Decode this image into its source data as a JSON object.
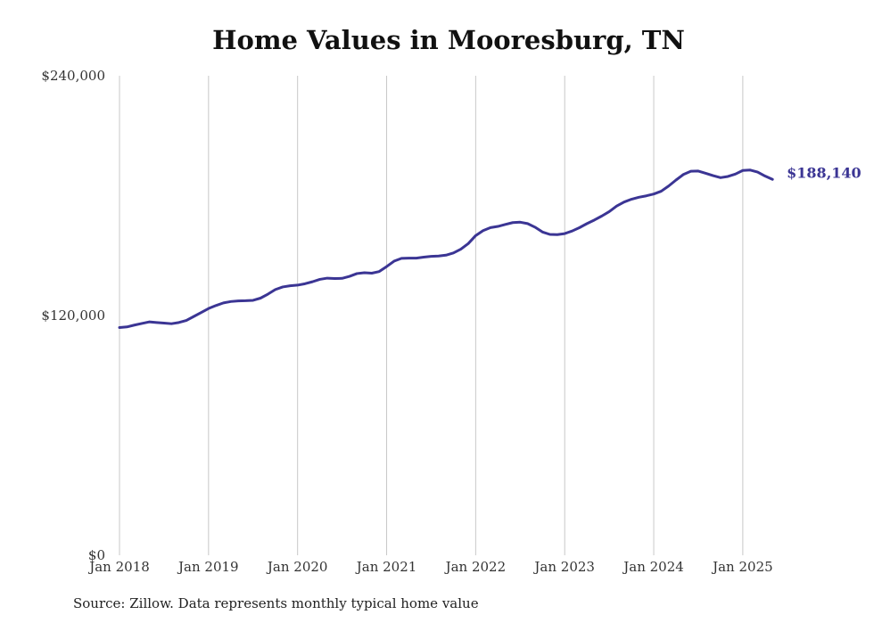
{
  "chart_data": {
    "type": "line",
    "title": "Home Values in Mooresburg, TN",
    "xlabel": "",
    "ylabel": "",
    "ylim": [
      0,
      240000
    ],
    "yticks": [
      {
        "value": 0,
        "label": "$0"
      },
      {
        "value": 120000,
        "label": "$120,000"
      },
      {
        "value": 240000,
        "label": "$240,000"
      }
    ],
    "xticks": [
      {
        "value": "2018-01",
        "label": "Jan 2018"
      },
      {
        "value": "2019-01",
        "label": "Jan 2019"
      },
      {
        "value": "2020-01",
        "label": "Jan 2020"
      },
      {
        "value": "2021-01",
        "label": "Jan 2021"
      },
      {
        "value": "2022-01",
        "label": "Jan 2022"
      },
      {
        "value": "2023-01",
        "label": "Jan 2023"
      },
      {
        "value": "2024-01",
        "label": "Jan 2024"
      },
      {
        "value": "2025-01",
        "label": "Jan 2025"
      }
    ],
    "grid": {
      "vertical": true,
      "horizontal": false
    },
    "legend": "none",
    "colors": {
      "line": "#3b3594",
      "grid": "#c8c8c8"
    },
    "end_label": "$188,140",
    "series": [
      {
        "points": [
          [
            "2018-01",
            114000
          ],
          [
            "2018-02",
            114300
          ],
          [
            "2018-03",
            115200
          ],
          [
            "2018-04",
            116000
          ],
          [
            "2018-05",
            116800
          ],
          [
            "2018-06",
            116500
          ],
          [
            "2018-07",
            116200
          ],
          [
            "2018-08",
            115900
          ],
          [
            "2018-09",
            116500
          ],
          [
            "2018-10",
            117500
          ],
          [
            "2018-11",
            119500
          ],
          [
            "2018-12",
            121500
          ],
          [
            "2019-01",
            123500
          ],
          [
            "2019-02",
            125000
          ],
          [
            "2019-03",
            126300
          ],
          [
            "2019-04",
            127000
          ],
          [
            "2019-05",
            127300
          ],
          [
            "2019-06",
            127400
          ],
          [
            "2019-07",
            127600
          ],
          [
            "2019-08",
            128700
          ],
          [
            "2019-09",
            130700
          ],
          [
            "2019-10",
            133000
          ],
          [
            "2019-11",
            134300
          ],
          [
            "2019-12",
            134900
          ],
          [
            "2020-01",
            135200
          ],
          [
            "2020-02",
            135900
          ],
          [
            "2020-03",
            136900
          ],
          [
            "2020-04",
            138100
          ],
          [
            "2020-05",
            138700
          ],
          [
            "2020-06",
            138500
          ],
          [
            "2020-07",
            138600
          ],
          [
            "2020-08",
            139600
          ],
          [
            "2020-09",
            141000
          ],
          [
            "2020-10",
            141400
          ],
          [
            "2020-11",
            141200
          ],
          [
            "2020-12",
            142000
          ],
          [
            "2021-01",
            144500
          ],
          [
            "2021-02",
            147200
          ],
          [
            "2021-03",
            148600
          ],
          [
            "2021-04",
            148700
          ],
          [
            "2021-05",
            148700
          ],
          [
            "2021-06",
            149200
          ],
          [
            "2021-07",
            149600
          ],
          [
            "2021-08",
            149800
          ],
          [
            "2021-09",
            150200
          ],
          [
            "2021-10",
            151300
          ],
          [
            "2021-11",
            153200
          ],
          [
            "2021-12",
            156000
          ],
          [
            "2022-01",
            160000
          ],
          [
            "2022-02",
            162500
          ],
          [
            "2022-03",
            164000
          ],
          [
            "2022-04",
            164600
          ],
          [
            "2022-05",
            165600
          ],
          [
            "2022-06",
            166500
          ],
          [
            "2022-07",
            166700
          ],
          [
            "2022-08",
            166000
          ],
          [
            "2022-09",
            164200
          ],
          [
            "2022-10",
            161800
          ],
          [
            "2022-11",
            160600
          ],
          [
            "2022-12",
            160500
          ],
          [
            "2023-01",
            161000
          ],
          [
            "2023-02",
            162300
          ],
          [
            "2023-03",
            164000
          ],
          [
            "2023-04",
            166000
          ],
          [
            "2023-05",
            167800
          ],
          [
            "2023-06",
            169800
          ],
          [
            "2023-07",
            172000
          ],
          [
            "2023-08",
            174800
          ],
          [
            "2023-09",
            176800
          ],
          [
            "2023-10",
            178200
          ],
          [
            "2023-11",
            179200
          ],
          [
            "2023-12",
            179900
          ],
          [
            "2024-01",
            180800
          ],
          [
            "2024-02",
            182200
          ],
          [
            "2024-03",
            184800
          ],
          [
            "2024-04",
            187800
          ],
          [
            "2024-05",
            190600
          ],
          [
            "2024-06",
            192200
          ],
          [
            "2024-07",
            192300
          ],
          [
            "2024-08",
            191200
          ],
          [
            "2024-09",
            190000
          ],
          [
            "2024-10",
            189000
          ],
          [
            "2024-11",
            189600
          ],
          [
            "2024-12",
            190800
          ],
          [
            "2025-01",
            192600
          ],
          [
            "2025-02",
            192800
          ],
          [
            "2025-03",
            191800
          ],
          [
            "2025-04",
            189800
          ],
          [
            "2025-05",
            188140
          ]
        ]
      }
    ]
  },
  "source_note": "Source: Zillow. Data represents monthly typical home value"
}
